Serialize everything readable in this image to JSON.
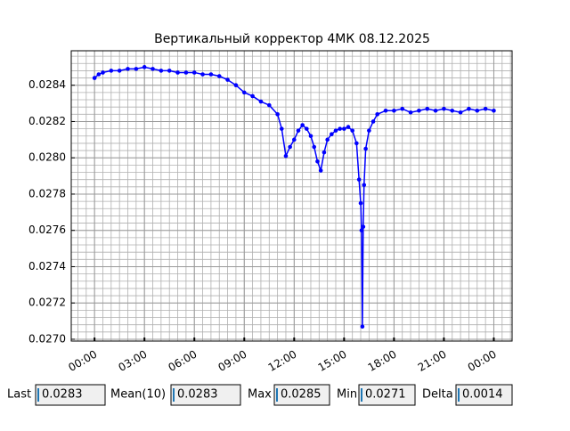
{
  "chart_data": {
    "type": "line",
    "title": "Вертикальный корректор 4МК 08.12.2025",
    "x": [
      0,
      0.25,
      0.5,
      1,
      1.5,
      2,
      2.5,
      3,
      3.5,
      4,
      4.5,
      5,
      5.5,
      6,
      6.5,
      7,
      7.5,
      8,
      8.5,
      9,
      9.5,
      10,
      10.5,
      11,
      11.25,
      11.5,
      11.75,
      12,
      12.25,
      12.5,
      12.75,
      13,
      13.2,
      13.4,
      13.6,
      13.8,
      14,
      14.25,
      14.5,
      14.75,
      15,
      15.25,
      15.5,
      15.75,
      15.9,
      16,
      16.05,
      16.1,
      16.15,
      16.2,
      16.3,
      16.5,
      16.75,
      17,
      17.5,
      18,
      18.5,
      19,
      19.5,
      20,
      20.5,
      21,
      21.5,
      22,
      22.5,
      23,
      23.5,
      24
    ],
    "series": [
      {
        "color": "#0000ff",
        "values": [
          0.02844,
          0.02846,
          0.02847,
          0.02848,
          0.02848,
          0.02849,
          0.02849,
          0.0285,
          0.02849,
          0.02848,
          0.02848,
          0.02847,
          0.02847,
          0.02847,
          0.02846,
          0.02846,
          0.02845,
          0.02843,
          0.0284,
          0.02836,
          0.02834,
          0.02831,
          0.02829,
          0.02824,
          0.02816,
          0.02801,
          0.02806,
          0.0281,
          0.02815,
          0.02818,
          0.02816,
          0.02812,
          0.02806,
          0.02798,
          0.02793,
          0.02803,
          0.0281,
          0.02813,
          0.02815,
          0.02816,
          0.02816,
          0.02817,
          0.02815,
          0.02808,
          0.02788,
          0.02775,
          0.0276,
          0.02707,
          0.02762,
          0.02785,
          0.02805,
          0.02815,
          0.0282,
          0.02824,
          0.02826,
          0.02826,
          0.02827,
          0.02825,
          0.02826,
          0.02827,
          0.02826,
          0.02827,
          0.02826,
          0.02825,
          0.02827,
          0.02826,
          0.02827,
          0.02826
        ]
      }
    ],
    "xlim": [
      -1.4,
      25.1
    ],
    "xticks": [
      {
        "value": 0,
        "label": "00:00"
      },
      {
        "value": 3,
        "label": "03:00"
      },
      {
        "value": 6,
        "label": "06:00"
      },
      {
        "value": 9,
        "label": "09:00"
      },
      {
        "value": 12,
        "label": "12:00"
      },
      {
        "value": 15,
        "label": "15:00"
      },
      {
        "value": 18,
        "label": "18:00"
      },
      {
        "value": 21,
        "label": "21:00"
      },
      {
        "value": 24,
        "label": "00:00"
      }
    ],
    "ylim": [
      0.02699,
      0.02859
    ],
    "yticks": [
      {
        "value": 0.027,
        "label": "0.0270"
      },
      {
        "value": 0.0272,
        "label": "0.0272"
      },
      {
        "value": 0.0274,
        "label": "0.0274"
      },
      {
        "value": 0.0276,
        "label": "0.0276"
      },
      {
        "value": 0.0278,
        "label": "0.0278"
      },
      {
        "value": 0.028,
        "label": "0.0280"
      },
      {
        "value": 0.0282,
        "label": "0.0282"
      },
      {
        "value": 0.0284,
        "label": "0.0284"
      }
    ],
    "grid": true,
    "minor_grid": true
  },
  "widgets": [
    {
      "label": "Last",
      "value": "0.0283"
    },
    {
      "label": "Mean(10)",
      "value": "0.0283"
    },
    {
      "label": "Max",
      "value": "0.0285"
    },
    {
      "label": "Min",
      "value": "0.0271"
    },
    {
      "label": "Delta",
      "value": "0.0014"
    }
  ]
}
